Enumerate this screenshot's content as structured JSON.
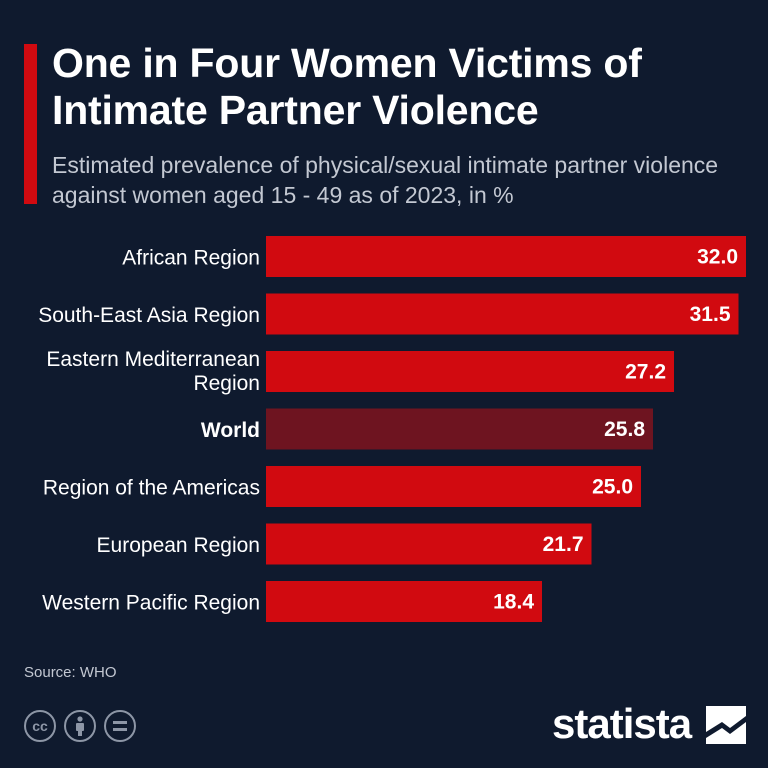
{
  "header": {
    "title": "One in Four Women Victims of Intimate Partner Violence",
    "subtitle": "Estimated prevalence of physical/sexual intimate partner violence against women aged 15 - 49 as of 2023, in %"
  },
  "chart_data": {
    "type": "bar",
    "orientation": "horizontal",
    "categories": [
      "African Region",
      "South-East Asia Region",
      "Eastern Mediterranean Region",
      "World",
      "Region of the Americas",
      "European Region",
      "Western Pacific Region"
    ],
    "values": [
      32.0,
      31.5,
      27.2,
      25.8,
      25.0,
      21.7,
      18.4
    ],
    "value_labels": [
      "32.0",
      "31.5",
      "27.2",
      "25.8",
      "25.0",
      "21.7",
      "18.4"
    ],
    "highlight": "World",
    "title": "One in Four Women Victims of Intimate Partner Violence",
    "xlabel": "",
    "ylabel": "",
    "xlim": [
      0,
      32.0
    ],
    "grid": false,
    "colors": {
      "bar": "#d10a10",
      "highlight": "#6e1420",
      "background": "#0f1a2e"
    }
  },
  "footer": {
    "source": "Source: WHO",
    "brand": "statista",
    "icons": [
      "cc-icon",
      "attribution-icon",
      "no-derivatives-icon"
    ]
  }
}
